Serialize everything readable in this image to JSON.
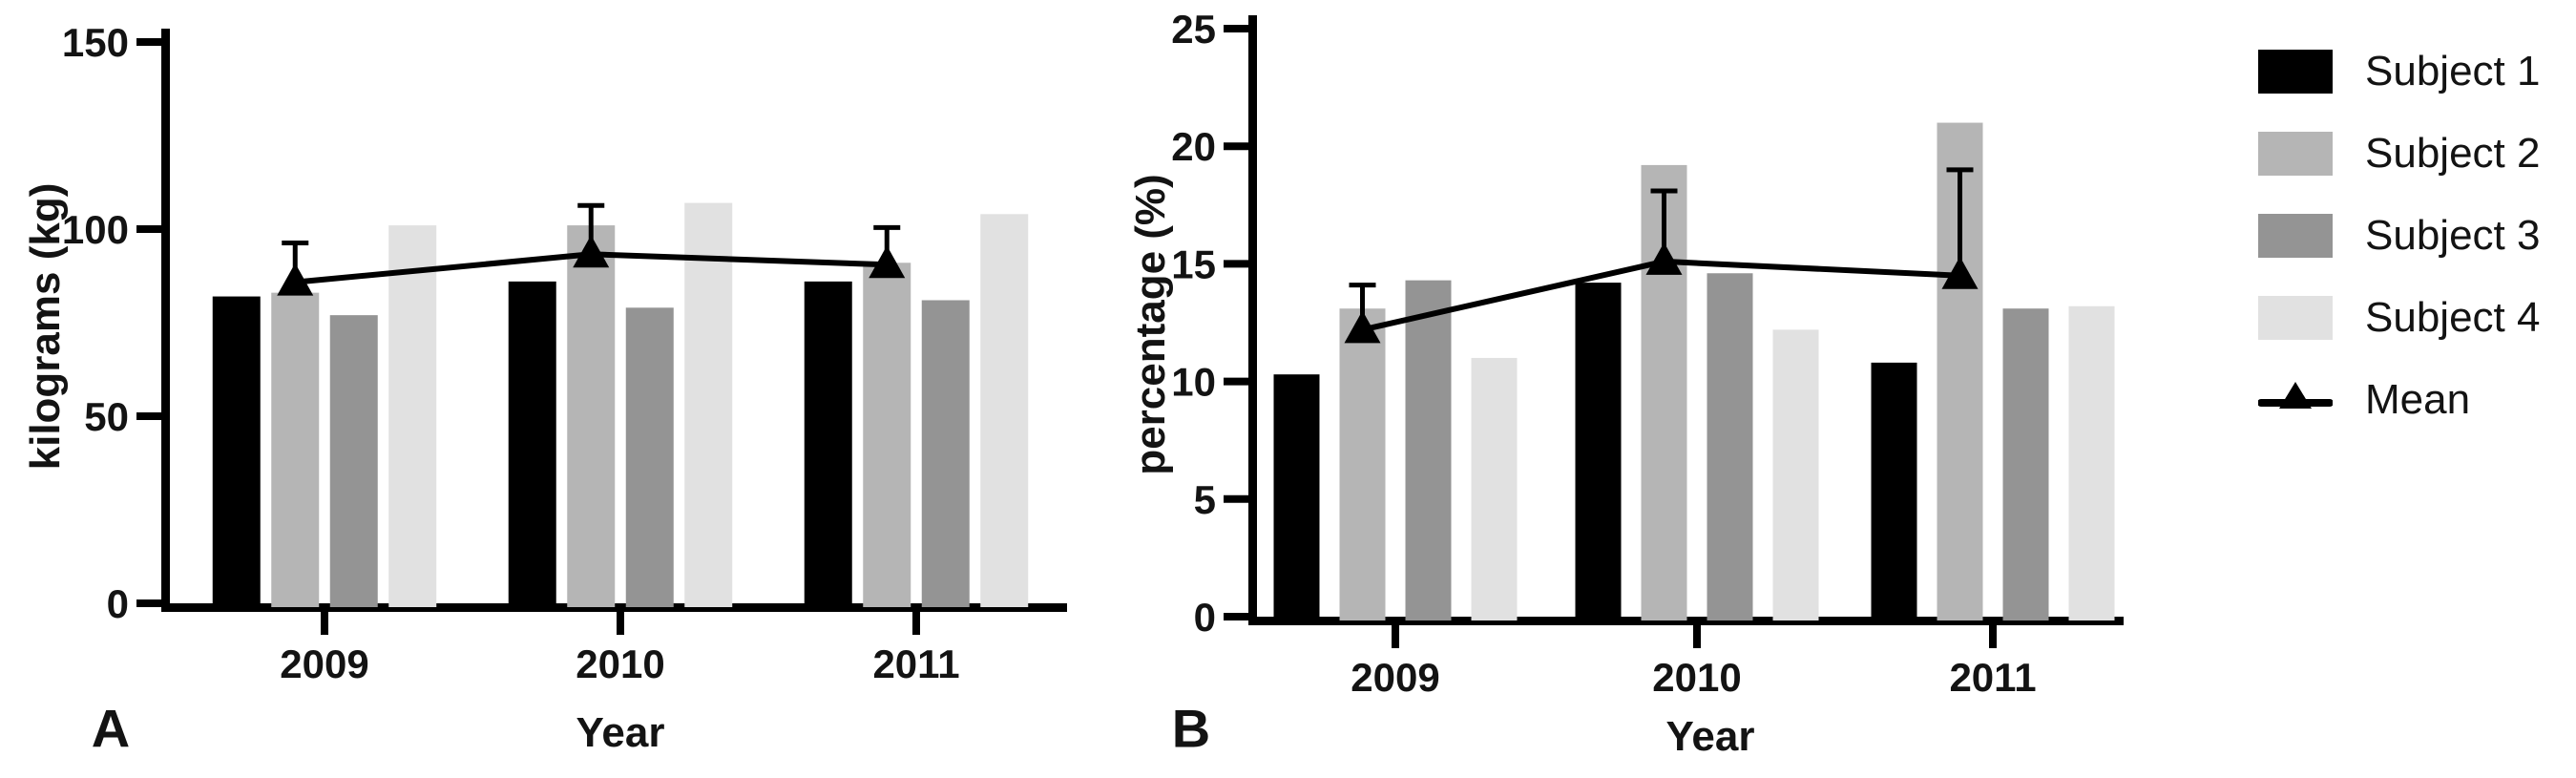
{
  "page": {
    "background_color": "#ffffff",
    "text_color": "#131313",
    "axis_color": "#000000"
  },
  "legend": {
    "items": [
      {
        "label": "Subject 1",
        "color": "#000000",
        "symbol": "box"
      },
      {
        "label": "Subject 2",
        "color": "#b5b5b5",
        "symbol": "box"
      },
      {
        "label": "Subject 3",
        "color": "#949494",
        "symbol": "box"
      },
      {
        "label": "Subject 4",
        "color": "#e1e1e1",
        "symbol": "box"
      },
      {
        "label": "Mean",
        "color": "#000000",
        "symbol": "line-triangle"
      }
    ]
  },
  "chart_data": [
    {
      "type": "bar",
      "panel": "A",
      "title": "",
      "ylabel": "kilograms (kg)",
      "xlabel": "Year",
      "ylim": [
        0,
        150
      ],
      "yticks": [
        0,
        50,
        100,
        150
      ],
      "categories": [
        "2009",
        "2010",
        "2011"
      ],
      "grid": false,
      "legend_position": "right-outside",
      "series": [
        {
          "name": "Subject 1",
          "color": "#000000",
          "values": [
            82,
            86,
            86
          ]
        },
        {
          "name": "Subject 2",
          "color": "#b5b5b5",
          "values": [
            83,
            101,
            91
          ]
        },
        {
          "name": "Subject 3",
          "color": "#949494",
          "values": [
            77,
            79,
            81
          ]
        },
        {
          "name": "Subject 4",
          "color": "#e1e1e1",
          "values": [
            101,
            107,
            104
          ]
        }
      ],
      "mean_line": {
        "name": "Mean",
        "color": "#000000",
        "marker": "triangle-up",
        "values": [
          85.8,
          93.3,
          90.5
        ],
        "sd": [
          10.5,
          13.0,
          9.9
        ],
        "error_bars": "+SD"
      }
    },
    {
      "type": "bar",
      "panel": "B",
      "title": "",
      "ylabel": "percentage (%)",
      "xlabel": "Year",
      "ylim": [
        0,
        25
      ],
      "yticks": [
        0,
        5,
        10,
        15,
        20,
        25
      ],
      "categories": [
        "2009",
        "2010",
        "2011"
      ],
      "grid": false,
      "legend_position": "right-outside",
      "series": [
        {
          "name": "Subject 1",
          "color": "#000000",
          "values": [
            10.3,
            14.2,
            10.8
          ]
        },
        {
          "name": "Subject 2",
          "color": "#b5b5b5",
          "values": [
            13.1,
            19.2,
            21.0
          ]
        },
        {
          "name": "Subject 3",
          "color": "#949494",
          "values": [
            14.3,
            14.6,
            13.1
          ]
        },
        {
          "name": "Subject 4",
          "color": "#e1e1e1",
          "values": [
            11.0,
            12.2,
            13.2
          ]
        }
      ],
      "mean_line": {
        "name": "Mean",
        "color": "#000000",
        "marker": "triangle-up",
        "values": [
          12.2,
          15.1,
          14.5
        ],
        "sd": [
          1.9,
          3.0,
          4.5
        ],
        "error_bars": "+SD"
      }
    }
  ]
}
